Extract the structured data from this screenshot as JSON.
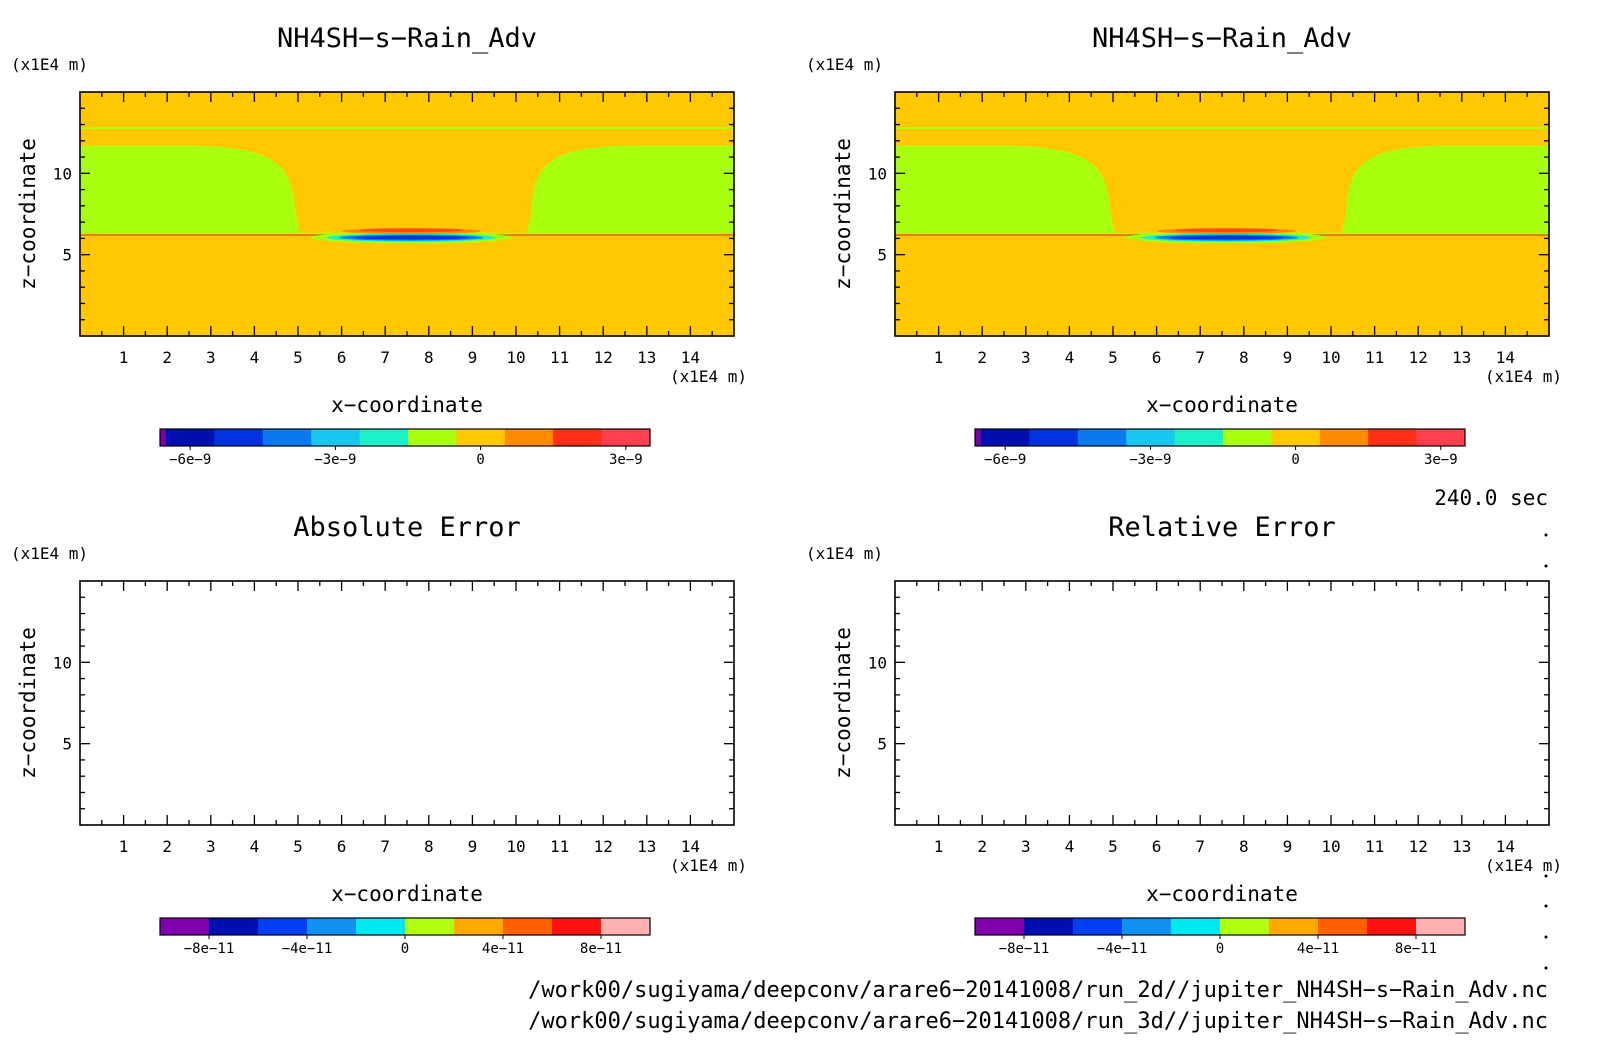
{
  "panels": [
    {
      "title": "NH4SH−s−Rain_Adv",
      "y_unit": "(x1E4 m)",
      "x_unit": "(x1E4 m)",
      "xlabel": "x−coordinate",
      "ylabel": "z−coordinate",
      "x_ticks": [
        "1",
        "2",
        "3",
        "4",
        "5",
        "6",
        "7",
        "8",
        "9",
        "10",
        "11",
        "12",
        "13",
        "14"
      ],
      "y_ticks": [
        "5",
        "10"
      ],
      "colorbar": {
        "colors": [
          "#7a00a8",
          "#000fb0",
          "#0033e0",
          "#0a78ee",
          "#18c6ee",
          "#1cf0c8",
          "#a8ff10",
          "#ffc800",
          "#ff8a00",
          "#ff3018",
          "#ff4050"
        ],
        "labels": [
          "−6e−9",
          "−3e−9",
          "0",
          "3e−9"
        ]
      }
    },
    {
      "title": "NH4SH−s−Rain_Adv",
      "y_unit": "(x1E4 m)",
      "x_unit": "(x1E4 m)",
      "xlabel": "x−coordinate",
      "ylabel": "z−coordinate",
      "x_ticks": [
        "1",
        "2",
        "3",
        "4",
        "5",
        "6",
        "7",
        "8",
        "9",
        "10",
        "11",
        "12",
        "13",
        "14"
      ],
      "y_ticks": [
        "5",
        "10"
      ],
      "colorbar": {
        "colors": [
          "#7a00a8",
          "#000fb0",
          "#0033e0",
          "#0a78ee",
          "#18c6ee",
          "#1cf0c8",
          "#a8ff10",
          "#ffc800",
          "#ff8a00",
          "#ff3018",
          "#ff4050"
        ],
        "labels": [
          "−6e−9",
          "−3e−9",
          "0",
          "3e−9"
        ]
      }
    },
    {
      "title": "Absolute Error",
      "y_unit": "(x1E4 m)",
      "x_unit": "(x1E4 m)",
      "xlabel": "x−coordinate",
      "ylabel": "z−coordinate",
      "x_ticks": [
        "1",
        "2",
        "3",
        "4",
        "5",
        "6",
        "7",
        "8",
        "9",
        "10",
        "11",
        "12",
        "13",
        "14"
      ],
      "y_ticks": [
        "5",
        "10"
      ],
      "colorbar": {
        "colors": [
          "#8000b0",
          "#0010b0",
          "#0040f0",
          "#1090f0",
          "#00e8f0",
          "#b0ff10",
          "#ffa800",
          "#ff6000",
          "#ff1010",
          "#ffb0b0"
        ],
        "labels": [
          "−8e−11",
          "−4e−11",
          "0",
          "4e−11",
          "8e−11"
        ]
      }
    },
    {
      "title": "Relative Error",
      "y_unit": "(x1E4 m)",
      "x_unit": "(x1E4 m)",
      "xlabel": "x−coordinate",
      "ylabel": "z−coordinate",
      "x_ticks": [
        "1",
        "2",
        "3",
        "4",
        "5",
        "6",
        "7",
        "8",
        "9",
        "10",
        "11",
        "12",
        "13",
        "14"
      ],
      "y_ticks": [
        "5",
        "10"
      ],
      "colorbar": {
        "colors": [
          "#8000b0",
          "#0010b0",
          "#0040f0",
          "#1090f0",
          "#00e8f0",
          "#b0ff10",
          "#ffa800",
          "#ff6000",
          "#ff1010",
          "#ffb0b0"
        ],
        "labels": [
          "−8e−11",
          "−4e−11",
          "0",
          "4e−11",
          "8e−11"
        ]
      }
    }
  ],
  "time_label": "240.0 sec",
  "footer": [
    "/work00/sugiyama/deepconv/arare6−20141008/run_2d//jupiter_NH4SH−s−Rain_Adv.nc",
    "/work00/sugiyama/deepconv/arare6−20141008/run_3d//jupiter_NH4SH−s−Rain_Adv.nc"
  ],
  "chart_data": [
    {
      "type": "heatmap",
      "title": "NH4SH−s−Rain_Adv",
      "xlabel": "x−coordinate",
      "ylabel": "z−coordinate",
      "xlim": [
        0,
        15
      ],
      "ylim": [
        0,
        15
      ],
      "x_ticks": [
        1,
        2,
        3,
        4,
        5,
        6,
        7,
        8,
        9,
        10,
        11,
        12,
        13,
        14
      ],
      "y_ticks": [
        5,
        10
      ],
      "colorbar_levels": [
        -6e-09,
        -3e-09,
        0,
        3e-09
      ],
      "features": [
        {
          "region": "background",
          "value": 0
        },
        {
          "region": "green band",
          "x": [
            0,
            5
          ],
          "z": [
            6.3,
            11.7
          ],
          "value": -3e-10
        },
        {
          "region": "green band",
          "x": [
            10.3,
            15
          ],
          "z": [
            6.3,
            11.7
          ],
          "value": -3e-10
        },
        {
          "region": "negative core",
          "x": [
            6,
            9.5
          ],
          "z": [
            5.8,
            6.3
          ],
          "value": -6e-09
        },
        {
          "region": "positive cap",
          "x": [
            6,
            9.2
          ],
          "z": [
            6.3,
            6.6
          ],
          "value": 3e-09
        }
      ]
    },
    {
      "type": "heatmap",
      "title": "NH4SH−s−Rain_Adv",
      "xlabel": "x−coordinate",
      "ylabel": "z−coordinate",
      "xlim": [
        0,
        15
      ],
      "ylim": [
        0,
        15
      ],
      "x_ticks": [
        1,
        2,
        3,
        4,
        5,
        6,
        7,
        8,
        9,
        10,
        11,
        12,
        13,
        14
      ],
      "y_ticks": [
        5,
        10
      ],
      "colorbar_levels": [
        -6e-09,
        -3e-09,
        0,
        3e-09
      ],
      "features": [
        {
          "region": "background",
          "value": 0
        },
        {
          "region": "green band",
          "x": [
            0,
            5
          ],
          "z": [
            6.3,
            11.7
          ],
          "value": -3e-10
        },
        {
          "region": "green band",
          "x": [
            10.3,
            15
          ],
          "z": [
            6.3,
            11.7
          ],
          "value": -3e-10
        },
        {
          "region": "negative core",
          "x": [
            6,
            9.5
          ],
          "z": [
            5.8,
            6.3
          ],
          "value": -6e-09
        },
        {
          "region": "positive cap",
          "x": [
            6,
            9.2
          ],
          "z": [
            6.3,
            6.6
          ],
          "value": 3e-09
        }
      ]
    },
    {
      "type": "heatmap",
      "title": "Absolute Error",
      "xlabel": "x−coordinate",
      "ylabel": "z−coordinate",
      "xlim": [
        0,
        15
      ],
      "ylim": [
        0,
        15
      ],
      "colorbar_levels": [
        -8e-11,
        -4e-11,
        0,
        4e-11,
        8e-11
      ],
      "features": [
        {
          "region": "empty"
        }
      ]
    },
    {
      "type": "heatmap",
      "title": "Relative Error",
      "xlabel": "x−coordinate",
      "ylabel": "z−coordinate",
      "xlim": [
        0,
        15
      ],
      "ylim": [
        0,
        15
      ],
      "colorbar_levels": [
        -8e-11,
        -4e-11,
        0,
        4e-11,
        8e-11
      ],
      "features": [
        {
          "region": "empty"
        }
      ]
    }
  ]
}
